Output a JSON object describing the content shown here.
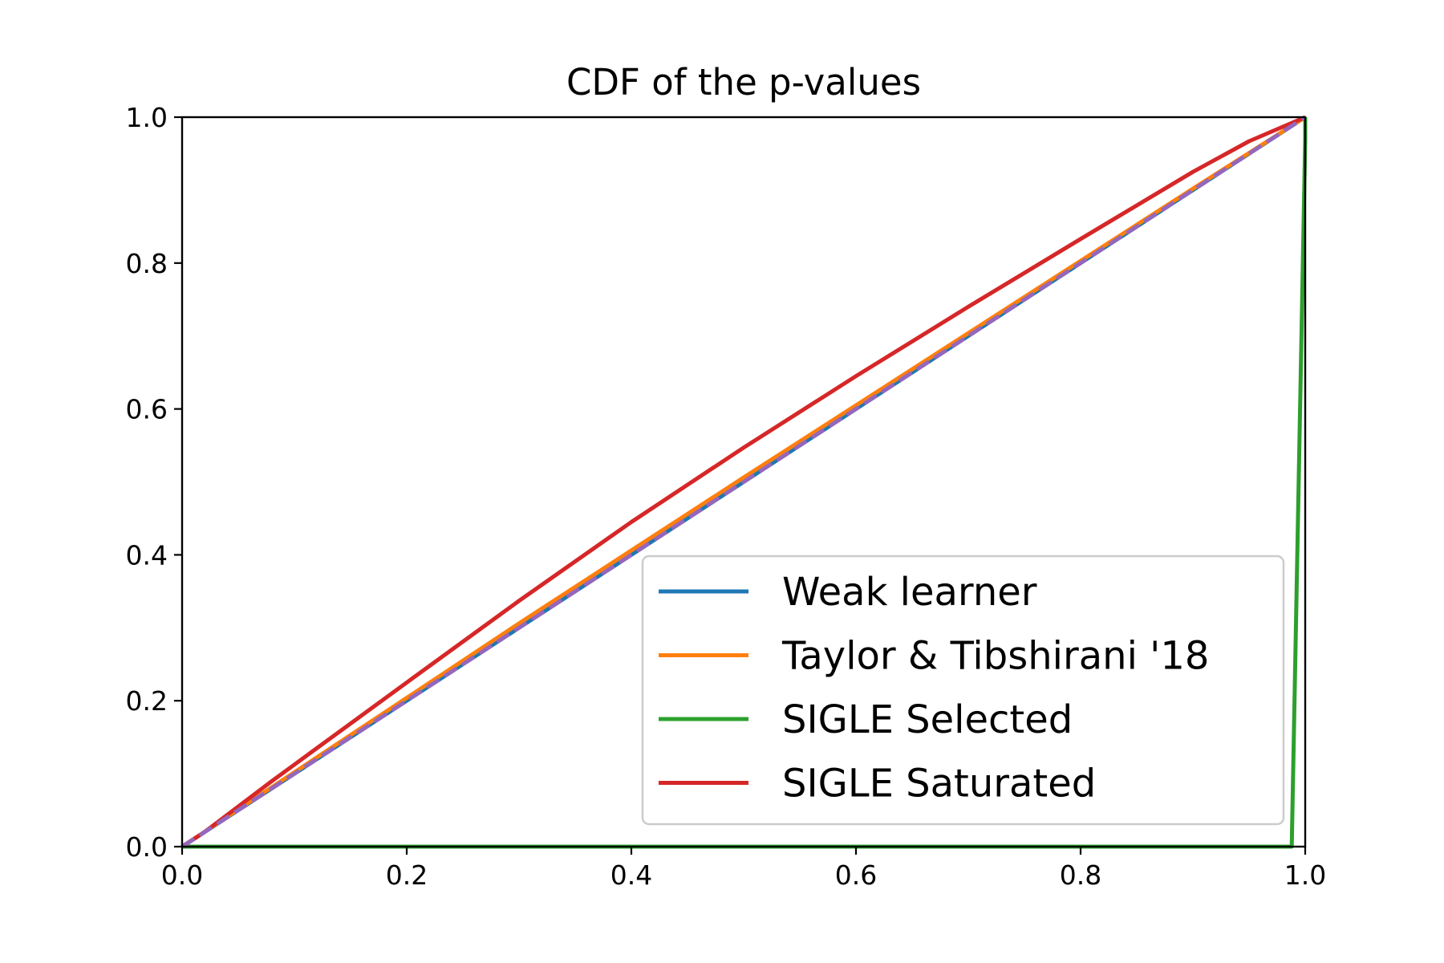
{
  "chart_data": {
    "type": "line",
    "title": "CDF of the p-values",
    "xlabel": "",
    "ylabel": "",
    "xlim": [
      0,
      1
    ],
    "ylim": [
      0,
      1
    ],
    "grid": false,
    "legend_position": "lower-right",
    "x_ticks": [
      "0.0",
      "0.2",
      "0.4",
      "0.6",
      "0.8",
      "1.0"
    ],
    "y_ticks": [
      "0.0",
      "0.2",
      "0.4",
      "0.6",
      "0.8",
      "1.0"
    ],
    "series": [
      {
        "name": "Weak learner",
        "color": "#1f77b4",
        "dash": false,
        "x": [
          0,
          0.1,
          0.2,
          0.3,
          0.4,
          0.5,
          0.6,
          0.7,
          0.8,
          0.9,
          1.0
        ],
        "y": [
          0,
          0.1,
          0.2,
          0.3,
          0.4,
          0.5,
          0.6,
          0.7,
          0.8,
          0.9,
          1.0
        ]
      },
      {
        "name": "Taylor & Tibshirani '18",
        "color": "#ff7f0e",
        "dash": false,
        "x": [
          0,
          0.1,
          0.2,
          0.3,
          0.4,
          0.5,
          0.6,
          0.7,
          0.8,
          0.9,
          1.0
        ],
        "y": [
          0,
          0.102,
          0.204,
          0.306,
          0.406,
          0.506,
          0.605,
          0.704,
          0.803,
          0.902,
          1.0
        ]
      },
      {
        "name": "SIGLE Selected",
        "color": "#2ca02c",
        "dash": false,
        "x": [
          0,
          0.5,
          0.988,
          1.0,
          1.0
        ],
        "y": [
          0,
          0,
          0,
          0.97,
          1.0
        ]
      },
      {
        "name": "SIGLE Saturated",
        "color": "#d62728",
        "dash": false,
        "x": [
          0,
          0.02,
          0.08,
          0.2,
          0.3,
          0.4,
          0.5,
          0.6,
          0.7,
          0.8,
          0.9,
          0.95,
          1.0
        ],
        "y": [
          0,
          0.02,
          0.09,
          0.225,
          0.337,
          0.445,
          0.547,
          0.645,
          0.74,
          0.833,
          0.925,
          0.967,
          1.0
        ]
      },
      {
        "name": "",
        "color": "#9467bd",
        "dash": true,
        "x": [
          0,
          1
        ],
        "y": [
          0,
          1
        ]
      }
    ]
  }
}
